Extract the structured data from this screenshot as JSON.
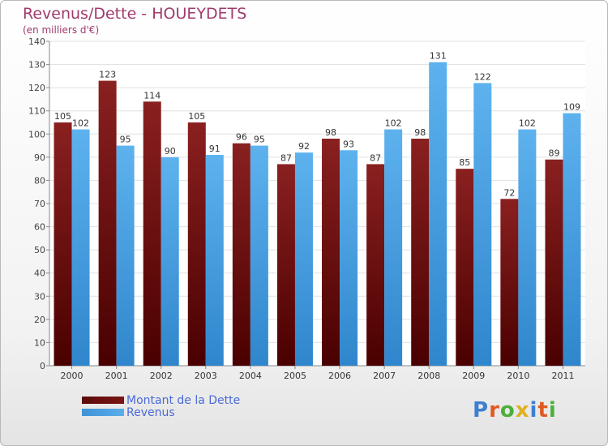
{
  "header": {
    "title": "Revenus/Dette - HOUEYDETS",
    "subtitle": "(en milliers d'€)"
  },
  "legend": [
    {
      "label": "Montant de la Dette",
      "color": "#5c0a0a"
    },
    {
      "label": "Revenus",
      "color": "#4fa3e0"
    }
  ],
  "logo": {
    "text": "Proxiti",
    "letters": [
      "P",
      "r",
      "o",
      "x",
      "i",
      "t",
      "i"
    ],
    "colors": [
      "#3d7fd0",
      "#e05a20",
      "#4caf3a",
      "#e0b020",
      "#3d7fd0",
      "#e05a20",
      "#4caf3a"
    ]
  },
  "chart_data": {
    "type": "bar",
    "title": "Revenus/Dette - HOUEYDETS",
    "subtitle": "(en milliers d'€)",
    "categories": [
      "2000",
      "2001",
      "2002",
      "2003",
      "2004",
      "2005",
      "2006",
      "2007",
      "2008",
      "2009",
      "2010",
      "2011"
    ],
    "series": [
      {
        "name": "Montant de la Dette",
        "color": "#7a1515",
        "values": [
          105,
          123,
          114,
          105,
          96,
          87,
          98,
          87,
          98,
          85,
          72,
          89
        ]
      },
      {
        "name": "Revenus",
        "color": "#4fa3e0",
        "values": [
          102,
          95,
          90,
          91,
          95,
          92,
          93,
          102,
          131,
          122,
          102,
          109
        ]
      }
    ],
    "ylim": [
      0,
      140
    ],
    "yticks": [
      0,
      10,
      20,
      30,
      40,
      50,
      60,
      70,
      80,
      90,
      100,
      110,
      120,
      130,
      140
    ],
    "grid": true,
    "legend_position": "bottom-left"
  }
}
